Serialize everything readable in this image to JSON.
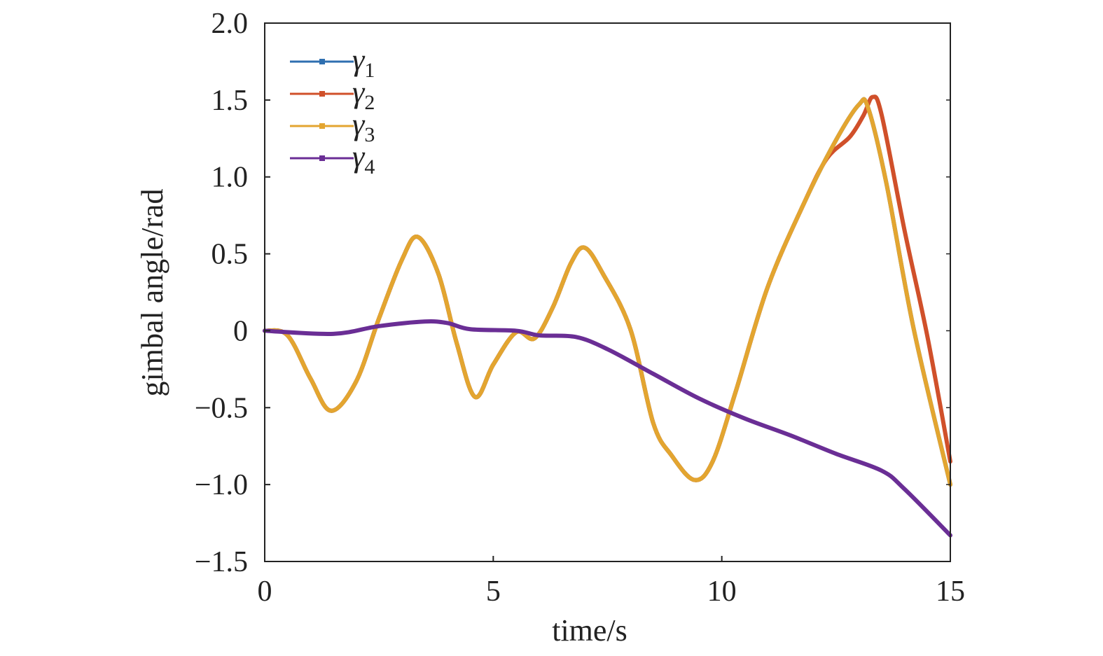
{
  "chart_data": {
    "type": "line",
    "xlabel": "time/s",
    "ylabel": "gimbal angle/rad",
    "xlim": [
      0,
      15
    ],
    "ylim": [
      -1.5,
      2.0
    ],
    "xticks": [
      "0",
      "5",
      "10",
      "15"
    ],
    "xtick_values": [
      0,
      5,
      10,
      15
    ],
    "yticks": [
      "2.0",
      "1.5",
      "1.0",
      "0.5",
      "0",
      "−0.5",
      "−1.0",
      "−1.5"
    ],
    "ytick_values": [
      2.0,
      1.5,
      1.0,
      0.5,
      0,
      -0.5,
      -1.0,
      -1.5
    ],
    "grid": false,
    "legend": "top-left",
    "series": [
      {
        "name": "γ1",
        "base": "γ",
        "sub": "1",
        "color": "#2f6fb0",
        "x": [
          0,
          0.5,
          1.0,
          1.45,
          2.0,
          2.5,
          3.0,
          3.35,
          3.8,
          4.2,
          4.6,
          5.0,
          5.5,
          5.9,
          6.3,
          6.7,
          7.0,
          7.4,
          8.0,
          8.5,
          8.9,
          9.4,
          9.8,
          10.3,
          11.0,
          11.8,
          12.5,
          13.0,
          13.2,
          13.6,
          14.2,
          15.0
        ],
        "y": [
          0,
          -0.03,
          -0.31,
          -0.52,
          -0.33,
          0.08,
          0.46,
          0.61,
          0.37,
          -0.08,
          -0.43,
          -0.22,
          -0.01,
          -0.05,
          0.15,
          0.44,
          0.54,
          0.37,
          0.01,
          -0.6,
          -0.81,
          -0.97,
          -0.85,
          -0.4,
          0.28,
          0.83,
          1.24,
          1.47,
          1.45,
          0.96,
          0.01,
          -1.0
        ]
      },
      {
        "name": "γ2",
        "base": "γ",
        "sub": "2",
        "color": "#d0502a",
        "x": [
          0,
          0.5,
          1.0,
          1.45,
          2.0,
          2.5,
          3.0,
          3.35,
          3.8,
          4.2,
          4.6,
          5.0,
          5.5,
          5.9,
          6.3,
          6.7,
          7.0,
          7.4,
          8.0,
          8.5,
          8.9,
          9.4,
          9.8,
          10.3,
          11.0,
          11.8,
          12.3,
          12.8,
          13.1,
          13.3,
          13.5,
          14.0,
          14.5,
          15.0
        ],
        "y": [
          0,
          -0.03,
          -0.31,
          -0.52,
          -0.33,
          0.08,
          0.46,
          0.61,
          0.37,
          -0.08,
          -0.43,
          -0.22,
          -0.01,
          -0.05,
          0.15,
          0.44,
          0.54,
          0.37,
          0.01,
          -0.6,
          -0.81,
          -0.97,
          -0.85,
          -0.4,
          0.28,
          0.83,
          1.12,
          1.26,
          1.4,
          1.52,
          1.4,
          0.65,
          -0.04,
          -0.85
        ]
      },
      {
        "name": "γ3",
        "base": "γ",
        "sub": "3",
        "color": "#e3a530",
        "x": [
          0,
          0.5,
          1.0,
          1.45,
          2.0,
          2.5,
          3.0,
          3.35,
          3.8,
          4.2,
          4.6,
          5.0,
          5.5,
          5.9,
          6.3,
          6.7,
          7.0,
          7.4,
          8.0,
          8.5,
          8.9,
          9.4,
          9.8,
          10.3,
          11.0,
          11.8,
          12.5,
          13.0,
          13.2,
          13.6,
          14.2,
          15.0
        ],
        "y": [
          0,
          -0.03,
          -0.31,
          -0.52,
          -0.33,
          0.08,
          0.46,
          0.61,
          0.37,
          -0.08,
          -0.43,
          -0.22,
          -0.01,
          -0.05,
          0.15,
          0.44,
          0.54,
          0.37,
          0.01,
          -0.6,
          -0.81,
          -0.97,
          -0.85,
          -0.4,
          0.28,
          0.83,
          1.24,
          1.47,
          1.45,
          0.96,
          0.01,
          -1.0
        ]
      },
      {
        "name": "γ4",
        "base": "γ",
        "sub": "4",
        "color": "#6a2e95",
        "x": [
          0,
          1.5,
          2.5,
          3.5,
          4.0,
          4.5,
          5.5,
          6.0,
          6.8,
          7.5,
          8.5,
          9.5,
          10.5,
          11.5,
          12.5,
          13.5,
          14.0,
          15.0
        ],
        "y": [
          0,
          -0.02,
          0.03,
          0.06,
          0.05,
          0.01,
          0.0,
          -0.03,
          -0.04,
          -0.12,
          -0.28,
          -0.44,
          -0.57,
          -0.68,
          -0.8,
          -0.91,
          -1.03,
          -1.33
        ]
      }
    ]
  }
}
